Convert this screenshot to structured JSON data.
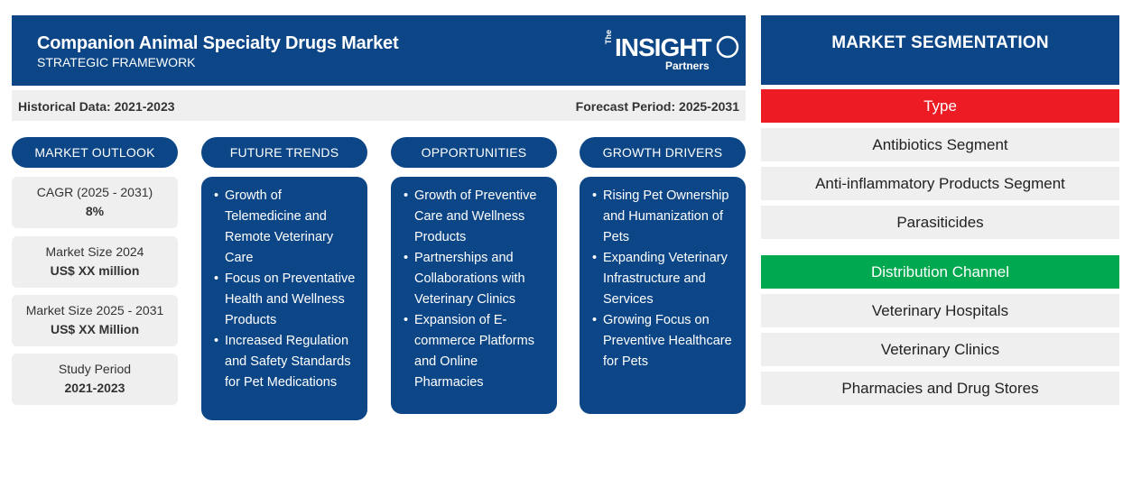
{
  "header": {
    "title": "Companion Animal Specialty Drugs Market",
    "subtitle": "STRATEGIC FRAMEWORK",
    "logo": {
      "the": "The",
      "insight": "INSIGHT",
      "partners": "Partners"
    }
  },
  "period": {
    "historical": "Historical Data: 2021-2023",
    "forecast": "Forecast Period: 2025-2031"
  },
  "columns": {
    "market_outlook": "MARKET OUTLOOK",
    "future_trends": "FUTURE TRENDS",
    "opportunities": "OPPORTUNITIES",
    "growth_drivers": "GROWTH DRIVERS"
  },
  "outlook": [
    {
      "label": "CAGR (2025 - 2031)",
      "value": "8%"
    },
    {
      "label": "Market Size 2024",
      "value": "US$ XX million"
    },
    {
      "label": "Market Size 2025 - 2031",
      "value": "US$ XX Million"
    },
    {
      "label": "Study Period",
      "value": "2021-2023"
    }
  ],
  "future_trends": [
    "Growth of Telemedicine and Remote Veterinary Care",
    "Focus on Preventative Health and Wellness Products",
    "Increased Regulation and Safety Standards for Pet Medications"
  ],
  "opportunities": [
    "Growth of Preventive Care and Wellness Products",
    "Partnerships and Collaborations with Veterinary Clinics",
    "Expansion of E-commerce Platforms and Online Pharmacies"
  ],
  "growth_drivers": [
    "Rising Pet Ownership and Humanization of Pets",
    "Expanding Veterinary Infrastructure and Services",
    "Growing Focus on Preventive Healthcare for Pets"
  ],
  "segmentation": {
    "title": "MARKET SEGMENTATION",
    "type": {
      "label": "Type",
      "color": "#ed1c24",
      "items": [
        "Antibiotics Segment",
        "Anti-inflammatory Products Segment",
        "Parasiticides"
      ]
    },
    "distribution": {
      "label": "Distribution Channel",
      "color": "#00a84f",
      "items": [
        "Veterinary Hospitals",
        "Veterinary Clinics",
        "Pharmacies and Drug Stores"
      ]
    }
  },
  "colors": {
    "brand": "#0c4687",
    "panel": "#efefef"
  }
}
